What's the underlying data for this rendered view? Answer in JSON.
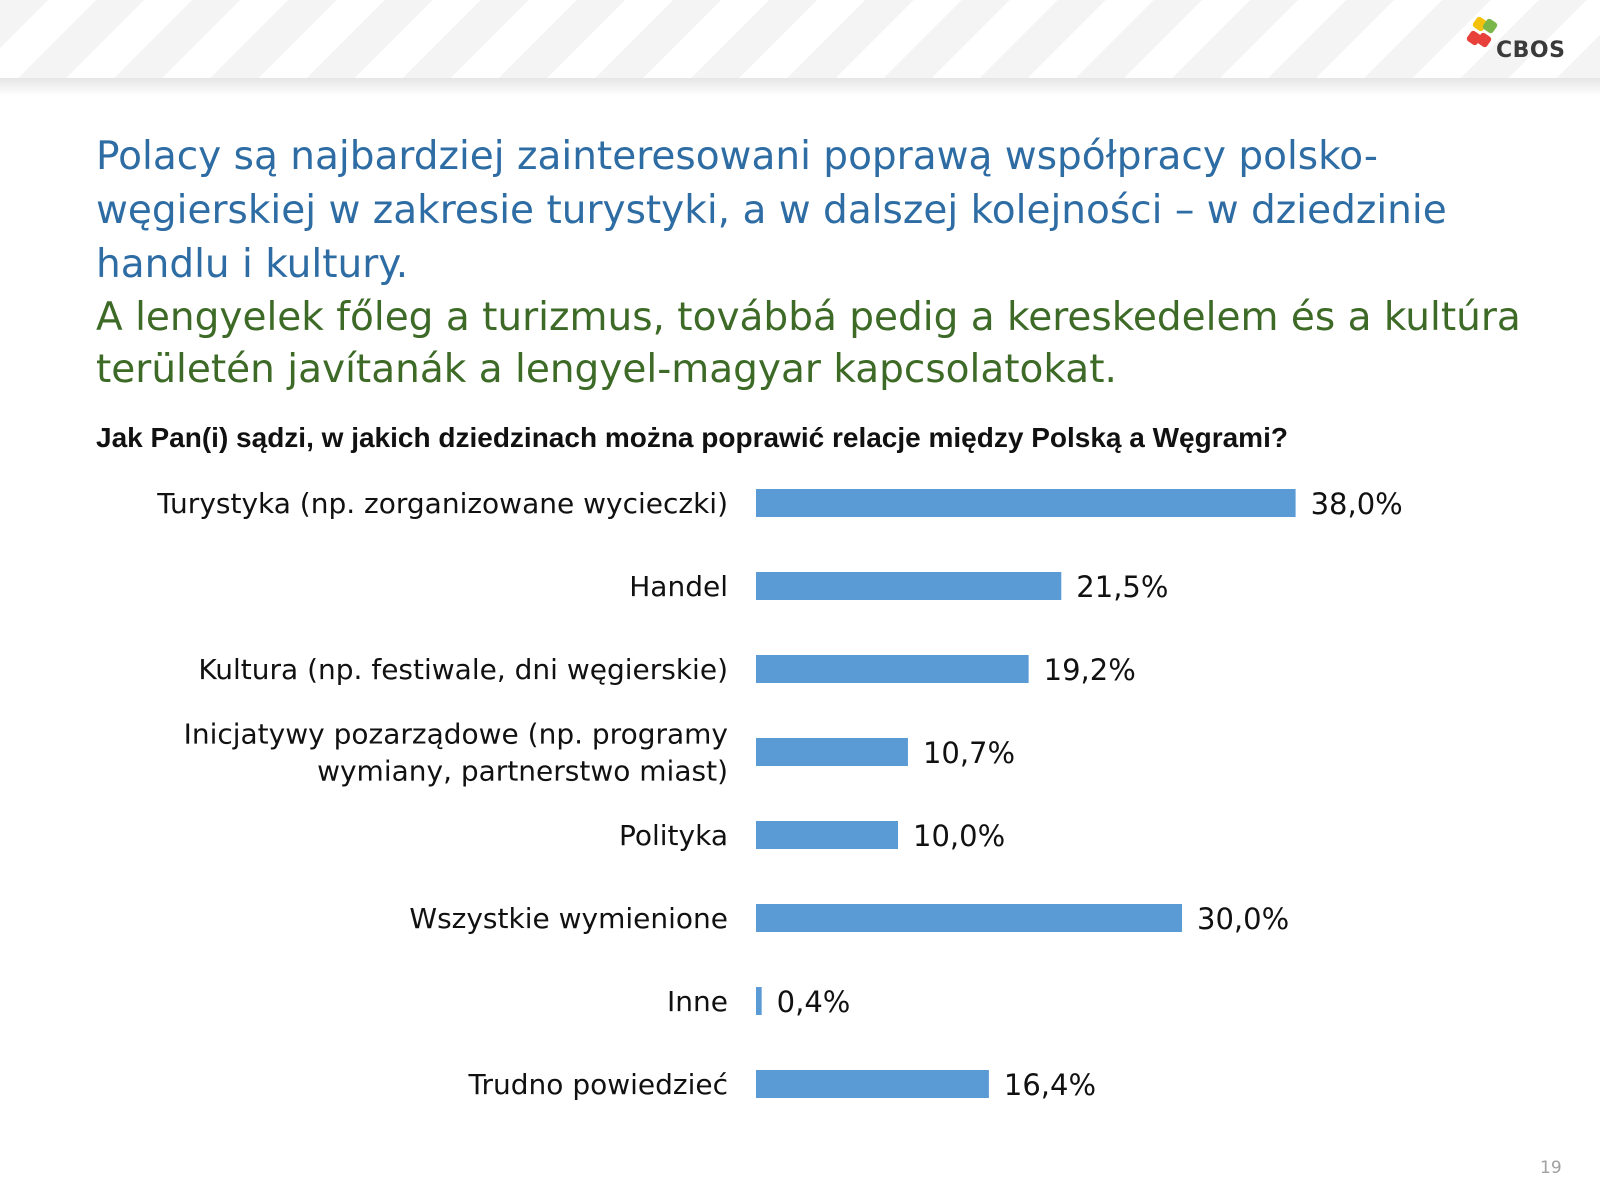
{
  "header": {
    "logo_text": "CBOS"
  },
  "title": {
    "polish": "Polacy są najbardziej zainteresowani poprawą współpracy polsko-węgierskiej w zakresie turystyki, a w dalszej kolejności – w dziedzinie handlu i kultury.",
    "hungarian": "A lengyelek főleg a turizmus, továbbá pedig a kereskedelem és a kultúra területén javítanák a lengyel-magyar kapcsolatokat."
  },
  "question": "Jak Pan(i) sądzi, w jakich dziedzinach można poprawić relacje między Polską a Węgrami?",
  "page_number": "19",
  "colors": {
    "bar": "#5b9bd5",
    "title_polish": "#2e6ca4",
    "title_hungarian": "#3d6a26"
  },
  "chart_data": {
    "type": "bar",
    "orientation": "horizontal",
    "categories": [
      [
        "Turystyka (np. zorganizowane wycieczki)"
      ],
      [
        "Handel"
      ],
      [
        "Kultura (np. festiwale, dni węgierskie)"
      ],
      [
        "Inicjatywy pozarządowe (np. programy",
        "wymiany, partnerstwo miast)"
      ],
      [
        "Polityka"
      ],
      [
        "Wszystkie wymienione"
      ],
      [
        "Inne"
      ],
      [
        "Trudno powiedzieć"
      ]
    ],
    "values": [
      38.0,
      21.5,
      19.2,
      10.7,
      10.0,
      30.0,
      0.4,
      16.4
    ],
    "value_labels": [
      "38,0%",
      "21,5%",
      "19,2%",
      "10,7%",
      "10,0%",
      "30,0%",
      "0,4%",
      "16,4%"
    ],
    "unit": "%",
    "grid": false,
    "legend": "none"
  }
}
